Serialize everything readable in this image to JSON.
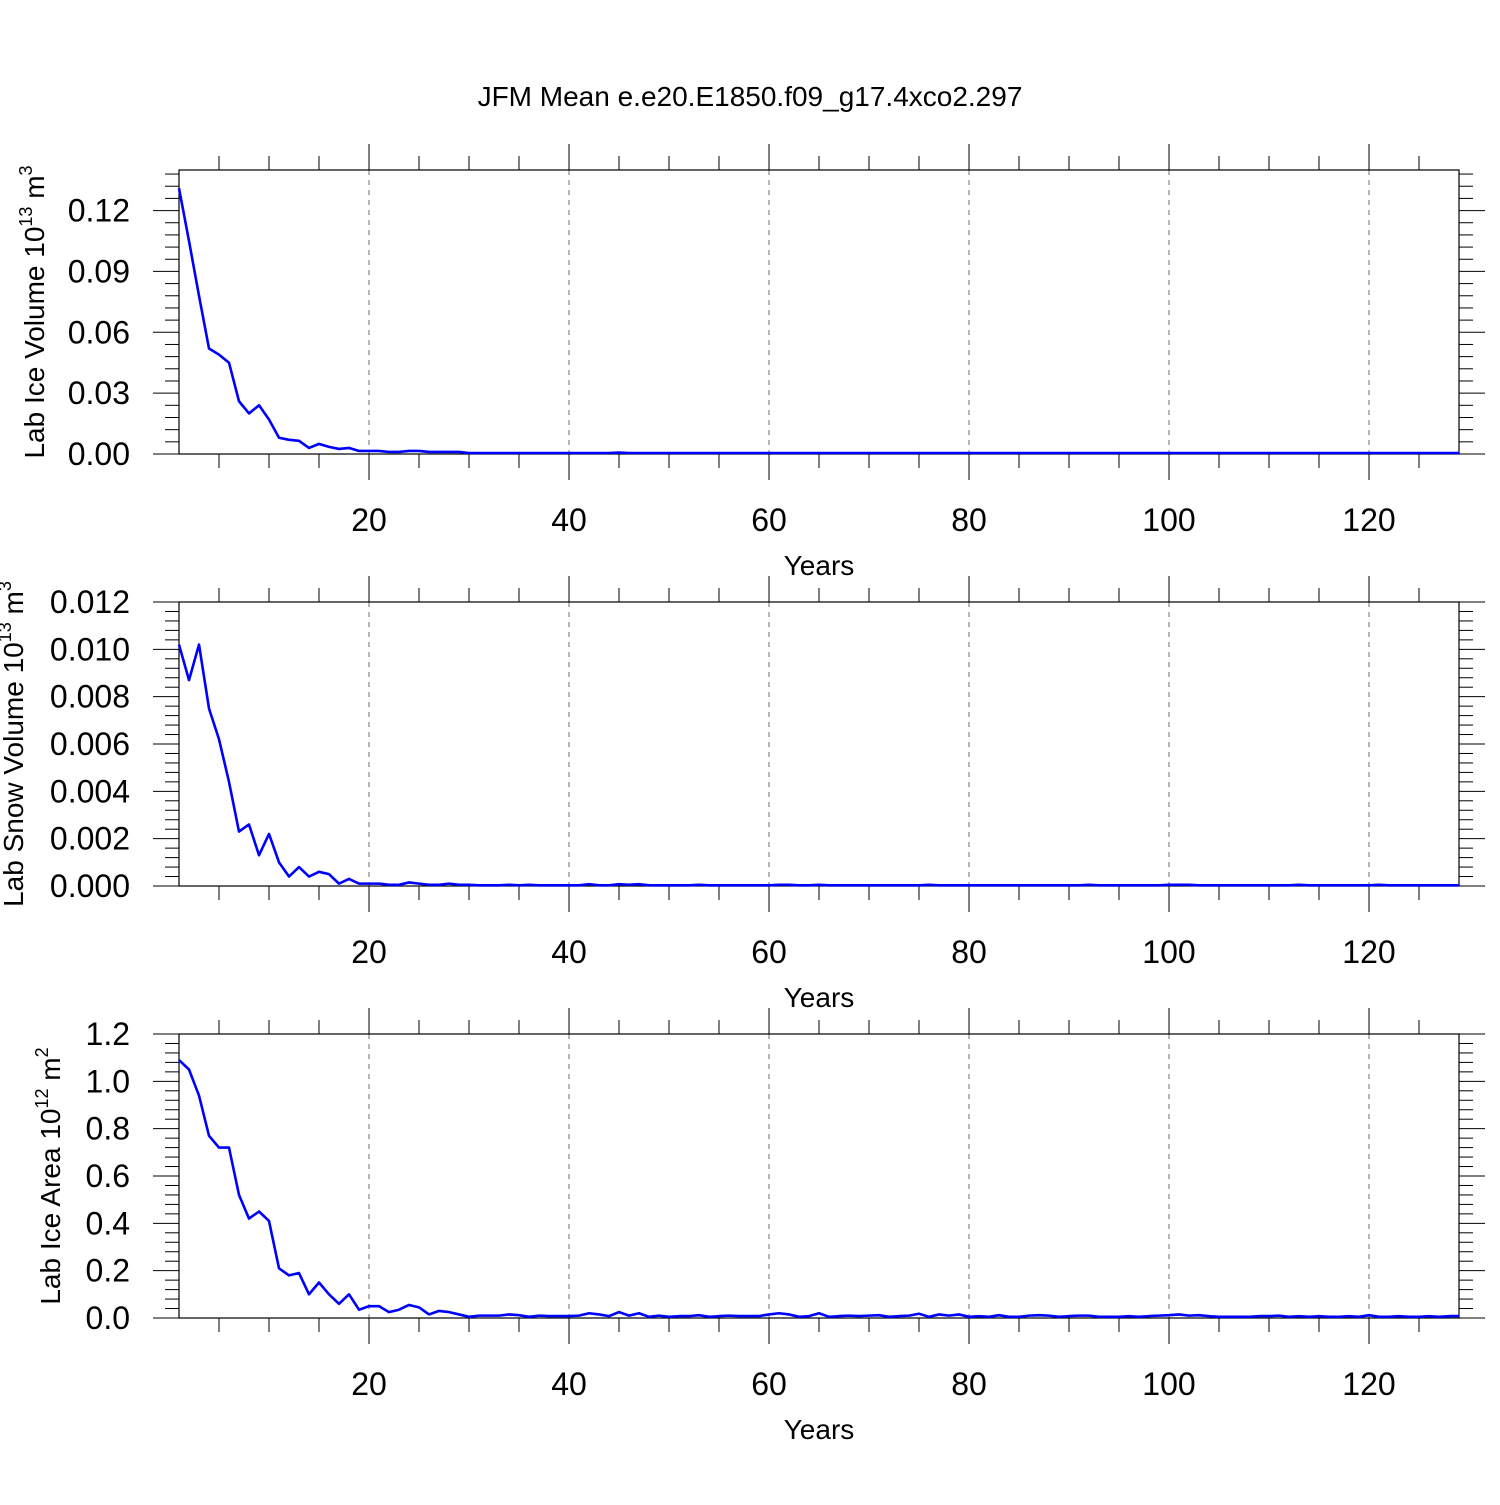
{
  "title": "JFM Mean e.e20.E1850.f09_g17.4xco2.297",
  "chart_data": [
    {
      "type": "line",
      "ylabel_base": "Lab Ice Volume 10",
      "ylabel_exp": "13",
      "ylabel_unit": " m",
      "ylabel_unit_exp": "3",
      "xlabel": "Years",
      "xlim": [
        1,
        129
      ],
      "ylim": [
        0,
        0.14
      ],
      "xticks": [
        20,
        40,
        60,
        80,
        100,
        120
      ],
      "xtick_labels": [
        "20",
        "40",
        "60",
        "80",
        "100",
        "120"
      ],
      "yticks": [
        0,
        0.03,
        0.06,
        0.09,
        0.12
      ],
      "ytick_labels": [
        "0.00",
        "0.03",
        "0.06",
        "0.09",
        "0.12"
      ],
      "grid": "vertical dashed at major x ticks",
      "color": "#0000ff",
      "x_start": 1,
      "values": [
        0.131,
        0.105,
        0.078,
        0.052,
        0.049,
        0.045,
        0.026,
        0.02,
        0.024,
        0.017,
        0.008,
        0.007,
        0.0065,
        0.003,
        0.005,
        0.0035,
        0.0025,
        0.003,
        0.0015,
        0.0015,
        0.0015,
        0.001,
        0.001,
        0.0015,
        0.0015,
        0.001,
        0.001,
        0.001,
        0.001,
        0.0005,
        0.0005,
        0.0005,
        0.0005,
        0.0005,
        0.0005,
        0.0005,
        0.0005,
        0.0005,
        0.0005,
        0.0005,
        0.0005,
        0.0005,
        0.0005,
        0.0005,
        0.0007,
        0.0005,
        0.0005,
        0.0005,
        0.0005,
        0.0005,
        0.0005,
        0.0005,
        0.0005,
        0.0005,
        0.0005,
        0.0005,
        0.0005,
        0.0005,
        0.0005,
        0.0005,
        0.0005,
        0.0005,
        0.0005,
        0.0005,
        0.0005,
        0.0005,
        0.0005,
        0.0005,
        0.0005,
        0.0005,
        0.0005,
        0.0005,
        0.0005,
        0.0005,
        0.0005,
        0.0005,
        0.0005,
        0.0005,
        0.0005,
        0.0005,
        0.0005,
        0.0005,
        0.0005,
        0.0005,
        0.0005,
        0.0005,
        0.0005,
        0.0005,
        0.0005,
        0.0005,
        0.0005,
        0.0005,
        0.0005,
        0.0005,
        0.0005,
        0.0005,
        0.0005,
        0.0005,
        0.0005,
        0.0005,
        0.0005,
        0.0005,
        0.0005,
        0.0005,
        0.0005,
        0.0005,
        0.0005,
        0.0005,
        0.0005,
        0.0005,
        0.0005,
        0.0005,
        0.0005,
        0.0005,
        0.0005,
        0.0005,
        0.0005,
        0.0005,
        0.0005,
        0.0005,
        0.0005,
        0.0005,
        0.0005,
        0.0005,
        0.0005,
        0.0005,
        0.0005,
        0.0005,
        0.0005
      ]
    },
    {
      "type": "line",
      "ylabel_base": "Lab Snow Volume 10",
      "ylabel_exp": "13",
      "ylabel_unit": " m",
      "ylabel_unit_exp": "3",
      "xlabel": "Years",
      "xlim": [
        1,
        129
      ],
      "ylim": [
        0,
        0.012
      ],
      "xticks": [
        20,
        40,
        60,
        80,
        100,
        120
      ],
      "xtick_labels": [
        "20",
        "40",
        "60",
        "80",
        "100",
        "120"
      ],
      "yticks": [
        0,
        0.002,
        0.004,
        0.006,
        0.008,
        0.01,
        0.012
      ],
      "ytick_labels": [
        "0.000",
        "0.002",
        "0.004",
        "0.006",
        "0.008",
        "0.010",
        "0.012"
      ],
      "grid": "vertical dashed at major x ticks",
      "color": "#0000ff",
      "x_start": 1,
      "values": [
        0.0102,
        0.0087,
        0.0102,
        0.0075,
        0.0062,
        0.0044,
        0.0023,
        0.0026,
        0.0013,
        0.0022,
        0.001,
        0.0004,
        0.0008,
        0.0004,
        0.0006,
        0.0005,
        0.0001,
        0.0003,
        0.0001,
        0.0001,
        0.0001,
        5e-05,
        5e-05,
        0.00015,
        0.0001,
        5e-05,
        5e-05,
        0.0001,
        5e-05,
        5e-05,
        3e-05,
        3e-05,
        3e-05,
        5e-05,
        3e-05,
        5e-05,
        3e-05,
        3e-05,
        3e-05,
        3e-05,
        3e-05,
        8e-05,
        3e-05,
        3e-05,
        8e-05,
        5e-05,
        8e-05,
        3e-05,
        3e-05,
        3e-05,
        3e-05,
        3e-05,
        5e-05,
        3e-05,
        3e-05,
        3e-05,
        3e-05,
        3e-05,
        3e-05,
        3e-05,
        5e-05,
        5e-05,
        3e-05,
        3e-05,
        5e-05,
        3e-05,
        3e-05,
        3e-05,
        3e-05,
        3e-05,
        3e-05,
        3e-05,
        3e-05,
        3e-05,
        3e-05,
        5e-05,
        3e-05,
        3e-05,
        3e-05,
        3e-05,
        3e-05,
        3e-05,
        3e-05,
        3e-05,
        3e-05,
        3e-05,
        3e-05,
        3e-05,
        3e-05,
        3e-05,
        3e-05,
        5e-05,
        3e-05,
        3e-05,
        3e-05,
        3e-05,
        3e-05,
        3e-05,
        3e-05,
        5e-05,
        5e-05,
        5e-05,
        3e-05,
        3e-05,
        3e-05,
        3e-05,
        3e-05,
        3e-05,
        3e-05,
        3e-05,
        3e-05,
        3e-05,
        5e-05,
        3e-05,
        3e-05,
        3e-05,
        3e-05,
        3e-05,
        3e-05,
        3e-05,
        5e-05,
        3e-05,
        3e-05,
        3e-05,
        3e-05,
        3e-05,
        3e-05,
        3e-05,
        3e-05
      ]
    },
    {
      "type": "line",
      "ylabel_base": "Lab Ice Area 10",
      "ylabel_exp": "12",
      "ylabel_unit": " m",
      "ylabel_unit_exp": "2",
      "xlabel": "Years",
      "xlim": [
        1,
        129
      ],
      "ylim": [
        0,
        1.2
      ],
      "xticks": [
        20,
        40,
        60,
        80,
        100,
        120
      ],
      "xtick_labels": [
        "20",
        "40",
        "60",
        "80",
        "100",
        "120"
      ],
      "yticks": [
        0,
        0.2,
        0.4,
        0.6,
        0.8,
        1.0,
        1.2
      ],
      "ytick_labels": [
        "0.0",
        "0.2",
        "0.4",
        "0.6",
        "0.8",
        "1.0",
        "1.2"
      ],
      "grid": "vertical dashed at major x ticks",
      "color": "#0000ff",
      "x_start": 1,
      "values": [
        1.09,
        1.05,
        0.94,
        0.77,
        0.72,
        0.72,
        0.52,
        0.42,
        0.45,
        0.41,
        0.21,
        0.18,
        0.19,
        0.1,
        0.15,
        0.1,
        0.06,
        0.1,
        0.035,
        0.05,
        0.05,
        0.025,
        0.035,
        0.055,
        0.045,
        0.015,
        0.03,
        0.025,
        0.015,
        0.005,
        0.01,
        0.01,
        0.01,
        0.015,
        0.012,
        0.005,
        0.01,
        0.008,
        0.008,
        0.008,
        0.01,
        0.02,
        0.015,
        0.008,
        0.025,
        0.01,
        0.02,
        0.005,
        0.01,
        0.005,
        0.008,
        0.008,
        0.012,
        0.005,
        0.008,
        0.01,
        0.008,
        0.008,
        0.008,
        0.015,
        0.02,
        0.015,
        0.005,
        0.008,
        0.02,
        0.005,
        0.008,
        0.01,
        0.008,
        0.01,
        0.012,
        0.005,
        0.008,
        0.01,
        0.018,
        0.005,
        0.015,
        0.01,
        0.015,
        0.005,
        0.008,
        0.005,
        0.012,
        0.005,
        0.005,
        0.01,
        0.012,
        0.01,
        0.005,
        0.008,
        0.01,
        0.01,
        0.005,
        0.005,
        0.005,
        0.008,
        0.005,
        0.008,
        0.01,
        0.012,
        0.015,
        0.01,
        0.012,
        0.008,
        0.005,
        0.005,
        0.005,
        0.005,
        0.008,
        0.008,
        0.01,
        0.005,
        0.008,
        0.005,
        0.008,
        0.005,
        0.005,
        0.008,
        0.005,
        0.012,
        0.005,
        0.005,
        0.008,
        0.005,
        0.005,
        0.008,
        0.005,
        0.008,
        0.008
      ]
    }
  ]
}
